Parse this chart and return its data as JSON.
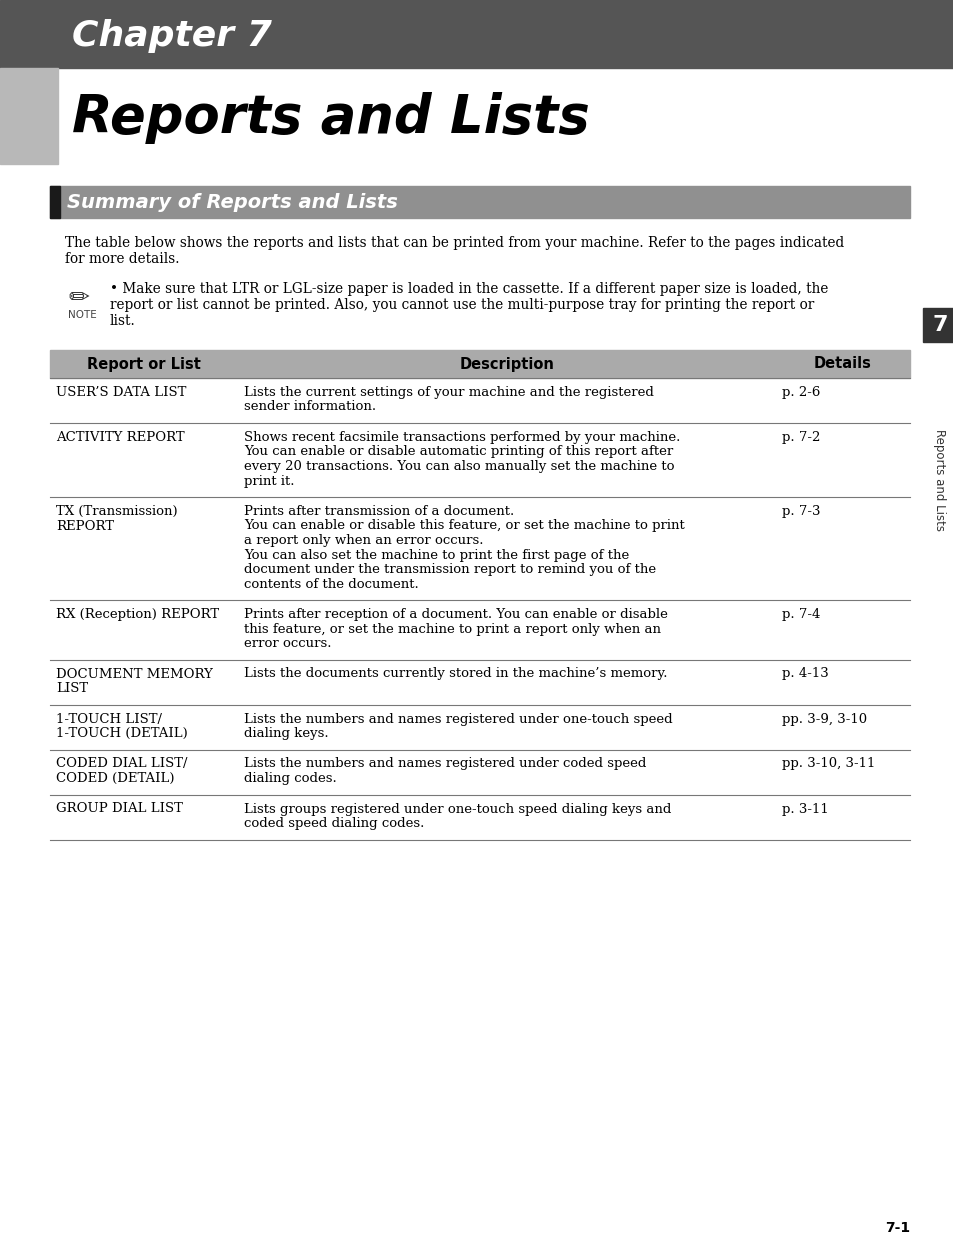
{
  "page_bg": "#ffffff",
  "header_bg": "#555555",
  "header_text": "Chapter 7",
  "header_text_color": "#ffffff",
  "title_text": "Reports and Lists",
  "title_text_color": "#000000",
  "left_bar_color": "#b8b8b8",
  "section_bg": "#909090",
  "section_title": "Summary of Reports and Lists",
  "section_title_color": "#ffffff",
  "section_accent_color": "#1a1a1a",
  "body_text_color": "#000000",
  "intro_line1": "The table below shows the reports and lists that can be printed from your machine. Refer to the pages indicated",
  "intro_line2": "for more details.",
  "note_line1": "• Make sure that LTR or LGL-size paper is loaded in the cassette. If a different paper size is loaded, the",
  "note_line2": "report or list cannot be printed. Also, you cannot use the multi-purpose tray for printing the report or",
  "note_line3": "list.",
  "table_header_bg": "#aaaaaa",
  "table_header_color": "#000000",
  "col_headers": [
    "Report or List",
    "Description",
    "Details"
  ],
  "table_rows": [
    {
      "name": [
        "USER’S DATA LIST"
      ],
      "desc": [
        "Lists the current settings of your machine and the registered",
        "sender information."
      ],
      "details": "p. 2-6"
    },
    {
      "name": [
        "ACTIVITY REPORT"
      ],
      "desc": [
        "Shows recent facsimile transactions performed by your machine.",
        "You can enable or disable automatic printing of this report after",
        "every 20 transactions. You can also manually set the machine to",
        "print it."
      ],
      "details": "p. 7-2"
    },
    {
      "name": [
        "TX (Transmission)",
        "REPORT"
      ],
      "desc": [
        "Prints after transmission of a document.",
        "You can enable or disable this feature, or set the machine to print",
        "a report only when an error occurs.",
        "You can also set the machine to print the first page of the",
        "document under the transmission report to remind you of the",
        "contents of the document."
      ],
      "details": "p. 7-3"
    },
    {
      "name": [
        "RX (Reception) REPORT"
      ],
      "desc": [
        "Prints after reception of a document. You can enable or disable",
        "this feature, or set the machine to print a report only when an",
        "error occurs."
      ],
      "details": "p. 7-4"
    },
    {
      "name": [
        "DOCUMENT MEMORY",
        "LIST"
      ],
      "desc": [
        "Lists the documents currently stored in the machine’s memory."
      ],
      "details": "p. 4-13"
    },
    {
      "name": [
        "1-TOUCH LIST/",
        "1-TOUCH (DETAIL)"
      ],
      "desc": [
        "Lists the numbers and names registered under one-touch speed",
        "dialing keys."
      ],
      "details": "pp. 3-9, 3-10"
    },
    {
      "name": [
        "CODED DIAL LIST/",
        "CODED (DETAIL)"
      ],
      "desc": [
        "Lists the numbers and names registered under coded speed",
        "dialing codes."
      ],
      "details": "pp. 3-10, 3-11"
    },
    {
      "name": [
        "GROUP DIAL LIST"
      ],
      "desc": [
        "Lists groups registered under one-touch speed dialing keys and",
        "coded speed dialing codes."
      ],
      "details": "p. 3-11"
    }
  ],
  "sidebar_number": "7",
  "sidebar_text": "Reports and Lists",
  "page_number": "7-1"
}
